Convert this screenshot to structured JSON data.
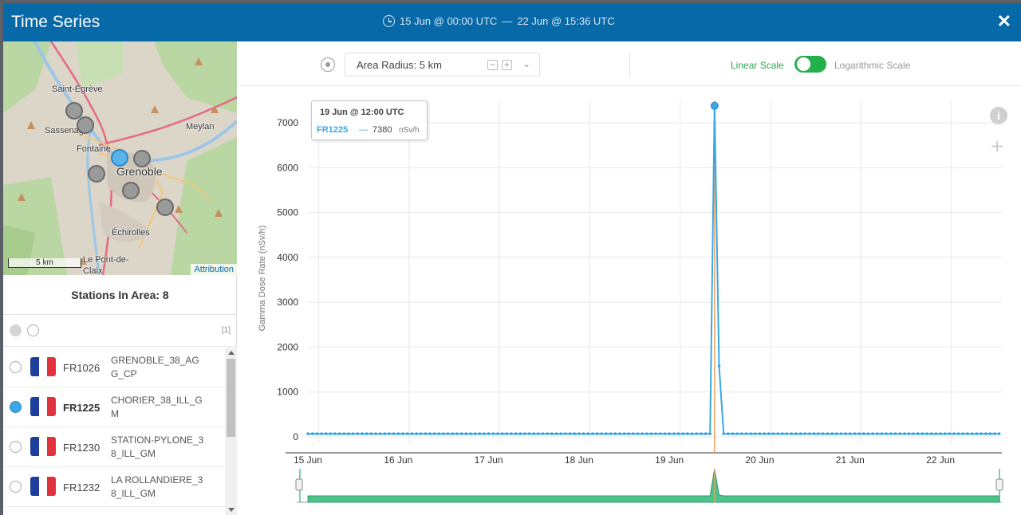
{
  "header": {
    "title": "Time Series",
    "date_from": "15 Jun @ 00:00 UTC",
    "date_sep": "—",
    "date_to": "22 Jun @ 15:36 UTC",
    "close_label": "✕"
  },
  "map": {
    "labels": [
      "Saint-Égrève",
      "Sassenage",
      "Fontaine",
      "Grenoble",
      "Meylan",
      "Échirolles",
      "Le Pont-de-Claix"
    ],
    "scale": "5 km",
    "attribution": "Attribution"
  },
  "stations": {
    "count_label": "Stations In Area: 8",
    "page_indicator": "[1]",
    "items": [
      {
        "code": "FR1026",
        "name": "GRENOBLE_38_AGG_CP",
        "selected": false
      },
      {
        "code": "FR1225",
        "name": "CHORIER_38_ILL_GM",
        "selected": true
      },
      {
        "code": "FR1230",
        "name": "STATION-PYLONE_38_ILL_GM",
        "selected": false
      },
      {
        "code": "FR1232",
        "name": "LA ROLLANDIERE_38_ILL_GM",
        "selected": false
      }
    ]
  },
  "toolbar": {
    "radius_label": "Area Radius: 5 km",
    "minus": "−",
    "plus": "+",
    "linear_label": "Linear Scale",
    "log_label": "Logarithmic Scale"
  },
  "tooltip": {
    "date": "19 Jun @ 12:00 UTC",
    "series": "FR1225",
    "dash": "—",
    "value": "7380",
    "unit": "nSv/h"
  },
  "colors": {
    "header": "#0769a8",
    "series": "#3aa7e8",
    "toggle": "#22b04b",
    "navigator": "#4cc38a",
    "crosshair": "#f0a060"
  },
  "chart_data": {
    "type": "line",
    "title": "",
    "xlabel": "",
    "ylabel": "Gamma Dose Rate (nSv/h)",
    "ylim": [
      0,
      7500
    ],
    "yticks": [
      0,
      1000,
      2000,
      3000,
      4000,
      5000,
      6000,
      7000
    ],
    "xticks": [
      "15 Jun",
      "16 Jun",
      "17 Jun",
      "18 Jun",
      "19 Jun",
      "20 Jun",
      "21 Jun",
      "22 Jun"
    ],
    "x_unit": "days since 15 Jun 00:00 UTC",
    "series": [
      {
        "name": "FR1225",
        "baseline": 70,
        "x_start": 0,
        "x_end": 7.65,
        "step": 0.05,
        "spike": [
          {
            "x": 4.45,
            "y": 70
          },
          {
            "x": 4.5,
            "y": 7380
          },
          {
            "x": 4.55,
            "y": 1580
          },
          {
            "x": 4.6,
            "y": 70
          }
        ]
      }
    ]
  }
}
